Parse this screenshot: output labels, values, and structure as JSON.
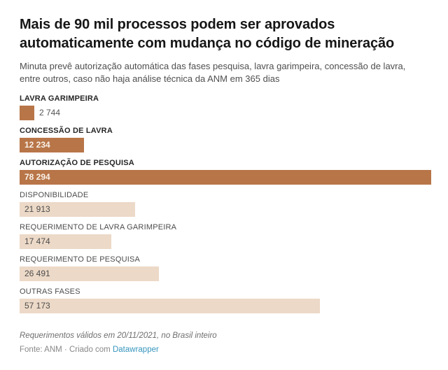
{
  "header": {
    "title": "Mais de 90 mil processos podem ser aprovados automaticamente com mudança no código de mineração",
    "subtitle": "Minuta prevê autorização automática das fases pesquisa, lavra garimpeira, concessão de lavra, entre outros, caso não haja análise técnica da ANM em 365 dias"
  },
  "chart_data": {
    "type": "bar",
    "orientation": "horizontal",
    "title": "Mais de 90 mil processos podem ser aprovados automaticamente com mudança no código de mineração",
    "categories": [
      "LAVRA GARIMPEIRA",
      "CONCESSÃO DE LAVRA",
      "AUTORIZAÇÃO DE PESQUISA",
      "DISPONIBILIDADE",
      "REQUERIMENTO DE LAVRA GARIMPEIRA",
      "REQUERIMENTO DE PESQUISA",
      "OUTRAS FASES"
    ],
    "values": [
      2744,
      12234,
      78294,
      21913,
      17474,
      26491,
      57173
    ],
    "value_labels": [
      "2 744",
      "12 234",
      "78 294",
      "21 913",
      "17 474",
      "26 491",
      "57 173"
    ],
    "highlighted": [
      true,
      true,
      true,
      false,
      false,
      false,
      false
    ],
    "xlim": [
      0,
      78294
    ],
    "grid": false,
    "legend": "none",
    "colors": {
      "highlight_bar": "#b87548",
      "normal_bar": "#ecd9c7",
      "value_on_highlight": "#f9f1e9",
      "value_on_normal": "#4d4d4d",
      "value_outside": "#565656"
    }
  },
  "footer": {
    "note": "Requerimentos válidos em 20/11/2021, no Brasil inteiro",
    "source_label": "Fonte: ANM",
    "separator": "·",
    "created_with": "Criado com",
    "attribution": "Datawrapper"
  }
}
